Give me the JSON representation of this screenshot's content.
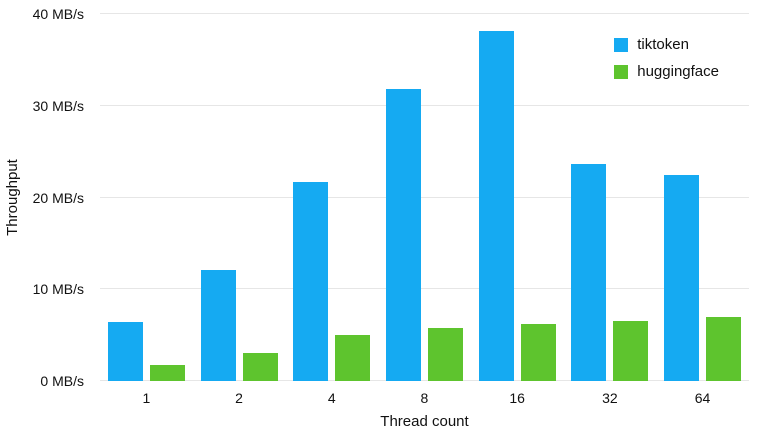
{
  "chart_data": {
    "type": "bar",
    "title": "",
    "xlabel": "Thread count",
    "ylabel": "Throughput",
    "categories": [
      "1",
      "2",
      "4",
      "8",
      "16",
      "32",
      "64"
    ],
    "series": [
      {
        "name": "tiktoken",
        "color": "#15aaf2",
        "values": [
          6.4,
          12.1,
          21.7,
          31.8,
          38.2,
          23.7,
          22.5
        ]
      },
      {
        "name": "huggingface",
        "color": "#5ec42e",
        "values": [
          1.8,
          3.1,
          5.0,
          5.8,
          6.2,
          6.5,
          7.0
        ]
      }
    ],
    "ylim": [
      0,
      40
    ],
    "yticks": [
      {
        "value": 0,
        "label": "0 MB/s"
      },
      {
        "value": 10,
        "label": "10 MB/s"
      },
      {
        "value": 20,
        "label": "20 MB/s"
      },
      {
        "value": 30,
        "label": "30 MB/s"
      },
      {
        "value": 40,
        "label": "40 MB/s"
      }
    ],
    "grid": true,
    "legend_position": "top-right"
  }
}
